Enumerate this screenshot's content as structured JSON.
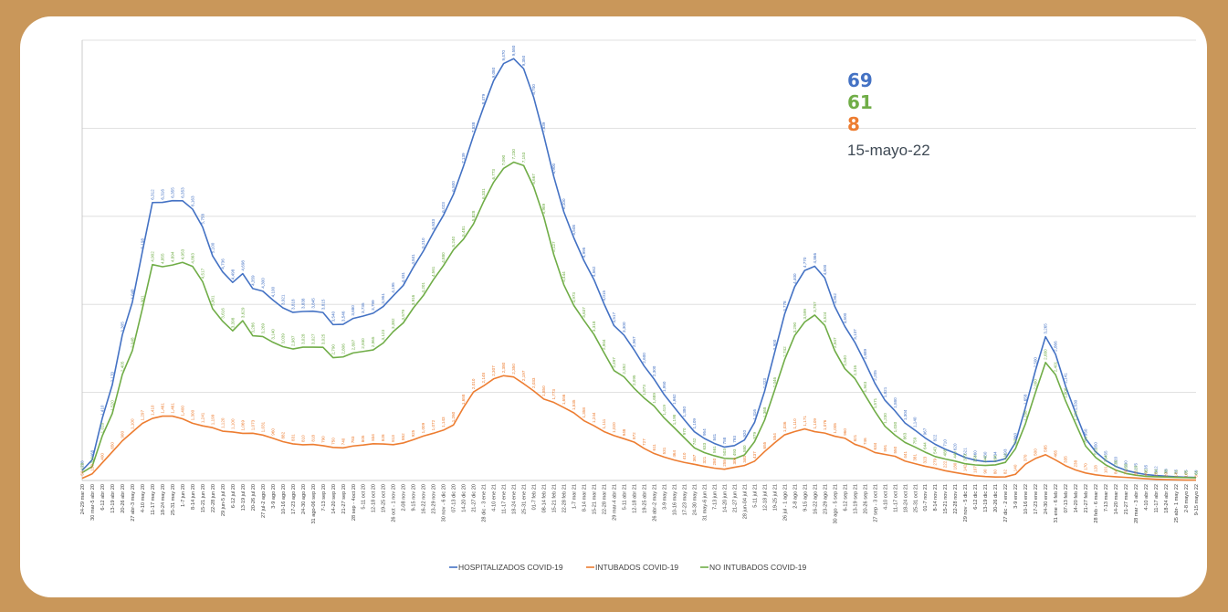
{
  "colors": {
    "background": "#c9975a",
    "hospitalizados": "#4472c4",
    "intubados": "#ed7d31",
    "no_intubados": "#70ad47",
    "date_text": "#3f4a55"
  },
  "summary": {
    "hospitalizados": "69",
    "no_intubados": "61",
    "intubados": "8",
    "date": "15-mayo-22"
  },
  "chart_data": {
    "type": "line",
    "title": "",
    "xlabel": "",
    "ylabel": "",
    "grid": true,
    "legend_position": "bottom",
    "ylim": [
      0,
      10000
    ],
    "categories": [
      "24-29 mar 20",
      "30 mar-5 abr 20",
      "6-12 abr 20",
      "13-19 abr 20",
      "20-26 abr 20",
      "27 abr-3 may 20",
      "4-10 may 20",
      "11-17 may 20",
      "18-24 may 20",
      "25-31 may 20",
      "1-7 jun 20",
      "8-14 jun 20",
      "15-21 jun 20",
      "22-28 jun 20",
      "29 jun-5 jul 20",
      "6-12 jul 20",
      "13-19 jul 20",
      "20-26 jul 20",
      "27 jul-2 ago 20",
      "3-9 ago 20",
      "10-16 ago 20",
      "17-23 ago 20",
      "24-30 ago 20",
      "31 ago-06 sep 20",
      "7-13 sep 20",
      "14-20 sep 20",
      "21-27 sep 20",
      "28 sep - 4oct 20",
      "5-11 oct 20",
      "12-18 oct 20",
      "19-25 oct 20",
      "26 oct - 1 nov 20",
      "2-08 nov 20",
      "9-15 nov 20",
      "16-22 nov 20",
      "23-29 nov 20",
      "30 nov - 6 dic 20",
      "07-13 dic 20",
      "14-20 dic 20",
      "21-27 dic 20",
      "28 dic - 3 ene 21",
      "4-10 ene 21",
      "11-17 ene 21",
      "18-24 ene 21",
      "25-31 ene 21",
      "01-7 feb 21",
      "08-14 feb 21",
      "15-21 feb 21",
      "22-28 feb 21",
      "1-7 mar 21",
      "8-14 mar 21",
      "15-21 mar 21",
      "22-28 mar 21",
      "29 mar-4 abr 21",
      "5-11 abr 21",
      "12-18 abr 21",
      "19-25 abr 21",
      "26 abr-2 may 21",
      "3-9 may 21",
      "10-16 may 21",
      "17-23 may 21",
      "24-30 may 21",
      "31 may-6 jun 21",
      "7-13 jun 21",
      "14-20 jun 21",
      "21-27 jun 21",
      "28 jun-04 jul 21",
      "5-11 jul 21",
      "12-18 jul 21",
      "19-25 jul 21",
      "26 jul - 1 ago 21",
      "2-8 ago 21",
      "9-15 ago 21",
      "16-22 ago 21",
      "23-29 ago 21",
      "30 ago - 5 sep 21",
      "6-12 sep 21",
      "13-19 sep 21",
      "20-26 sep 21",
      "27 sep - 3 oct 21",
      "4-10 oct 21",
      "11-17 oct 21",
      "18-24 oct 21",
      "25-31 oct 21",
      "01-7 nov 21",
      "8-14 nov 21",
      "15-21 nov 21",
      "22-28 nov 21",
      "29 nov - 5 dic 21",
      "6-12 dic 21",
      "13-19 dic 21",
      "20-26 dic 21",
      "27 dic - 2 ene 22",
      "3-9 ene 22",
      "10-16 ene 22",
      "17-23 ene 22",
      "24-30 ene 22",
      "31 ene - 6 feb 22",
      "07-13 feb 22",
      "14-20 feb 22",
      "21-27 feb 22",
      "28 feb - 6 mar 22",
      "7-13 mar 22",
      "14-20 mar 22",
      "21-27 mar 22",
      "28 mar - 3 abr 22",
      "4-10 abr 22",
      "11-17 abr 22",
      "18-24 abr 22",
      "25 abr- 1 may 22",
      "2-8 mayo 22",
      "9-15 mayo 22"
    ],
    "series": [
      {
        "name": "HOSPITALIZADOS COVID-19",
        "color": "#4472c4",
        "values": [
          228,
          468,
          1410,
          2170,
          3305,
          4048,
          5198,
          6312,
          6316,
          6355,
          6353,
          6163,
          5758,
          5100,
          4736,
          4498,
          4698,
          4359,
          4300,
          4100,
          3921,
          3818,
          3838,
          3845,
          3815,
          3540,
          3546,
          3680,
          3735,
          3799,
          3951,
          4195,
          4431,
          4841,
          5210,
          5633,
          6023,
          6500,
          7139,
          7838,
          8479,
          9080,
          9470,
          9580,
          9350,
          8700,
          7839,
          6900,
          6100,
          5508,
          4995,
          4562,
          4015,
          3517,
          3300,
          2967,
          2600,
          2300,
          1950,
          1662,
          1380,
          1109,
          954,
          841,
          758,
          793,
          920,
          1316,
          2023,
          2900,
          3778,
          4400,
          4770,
          4866,
          4600,
          3952,
          3500,
          3137,
          2689,
          2205,
          1821,
          1580,
          1304,
          1140,
          967,
          822,
          710,
          620,
          521,
          460,
          430,
          434,
          493,
          860,
          1658,
          2500,
          3265,
          2866,
          2141,
          1530,
          950,
          650,
          455,
          320,
          230,
          175,
          135,
          112,
          98,
          85,
          75,
          69
        ]
      },
      {
        "name": "INTUBADOS COVID-19",
        "color": "#ed7d31",
        "values": [
          50,
          150,
          400,
          650,
          900,
          1100,
          1297,
          1410,
          1461,
          1461,
          1400,
          1300,
          1241,
          1199,
          1120,
          1100,
          1069,
          1073,
          1031,
          960,
          882,
          831,
          810,
          818,
          790,
          750,
          740,
          783,
          805,
          834,
          828,
          813,
          852,
          925,
          1009,
          1072,
          1143,
          1260,
          1658,
          2010,
          2148,
          2307,
          2380,
          2350,
          2197,
          2033,
          1850,
          1773,
          1656,
          1535,
          1358,
          1244,
          1111,
          1020,
          948,
          872,
          727,
          611,
          531,
          464,
          410,
          367,
          321,
          280,
          255,
          300,
          340,
          437,
          655,
          854,
          1036,
          1110,
          1171,
          1109,
          1076,
          1005,
          960,
          821,
          746,
          634,
          591,
          550,
          441,
          381,
          323,
          279,
          222,
          180,
          142,
          107,
          90,
          80,
          82,
          140,
          370,
          500,
          585,
          465,
          335,
          238,
          170,
          128,
          101,
          84,
          70,
          55,
          40,
          28,
          20,
          14,
          10,
          8
        ]
      },
      {
        "name": "NO INTUBADOS COVID-19",
        "color": "#70ad47",
        "values": [
          178,
          318,
          1010,
          1520,
          2405,
          2948,
          3901,
          4902,
          4855,
          4894,
          4953,
          4863,
          4517,
          3901,
          3616,
          3398,
          3629,
          3286,
          3269,
          3140,
          3039,
          2987,
          3028,
          3027,
          3025,
          2790,
          2806,
          2897,
          2930,
          2965,
          3123,
          3382,
          3579,
          3916,
          4201,
          4561,
          4880,
          5240,
          5481,
          5828,
          6331,
          6773,
          7090,
          7230,
          7153,
          6667,
          5989,
          5127,
          4444,
          3973,
          3637,
          3318,
          2904,
          2497,
          2352,
          2095,
          1873,
          1689,
          1419,
          1198,
          970,
          742,
          633,
          561,
          503,
          493,
          580,
          879,
          1368,
          2046,
          2742,
          3290,
          3599,
          3757,
          3524,
          2947,
          2540,
          2316,
          1943,
          1571,
          1230,
          1030,
          863,
          759,
          644,
          543,
          488,
          440,
          379,
          353,
          340,
          354,
          411,
          720,
          1288,
          2000,
          2680,
          2401,
          1806,
          1292,
          780,
          522,
          354,
          236,
          160,
          120,
          95,
          84,
          78,
          71,
          65,
          61
        ]
      }
    ]
  }
}
